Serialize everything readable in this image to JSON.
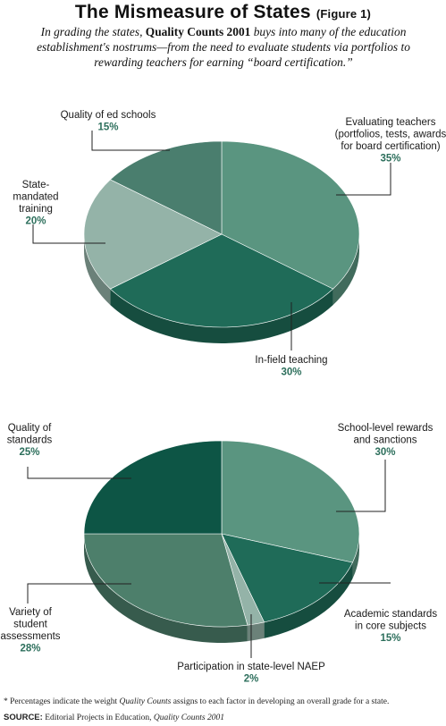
{
  "title": "The Mismeasure of States",
  "figure_label": "(Figure 1)",
  "subtitle": {
    "pre": "In grading the states, ",
    "bold": "Quality Counts 2001",
    "post": " buys into many of the education establishment's nostrums—from the need to evaluate students via portfolios to rewarding teachers for earning “board certification.”"
  },
  "chart_data": [
    {
      "type": "pie",
      "title": "",
      "slices": [
        {
          "label": "Evaluating teachers (portfolios, tests, awards for board certification)",
          "value": 35,
          "pct_label": "35%",
          "color": "#5a9580"
        },
        {
          "label": "In-field teaching",
          "value": 30,
          "pct_label": "30%",
          "color": "#1f6b58"
        },
        {
          "label": "State-mandated training",
          "value": 20,
          "pct_label": "20%",
          "color": "#94b3a8"
        },
        {
          "label": "Quality of ed schools",
          "value": 15,
          "pct_label": "15%",
          "color": "#4a7e6e"
        }
      ]
    },
    {
      "type": "pie",
      "title": "",
      "slices": [
        {
          "label": "School-level rewards and sanctions",
          "value": 30,
          "pct_label": "30%",
          "color": "#5a9580"
        },
        {
          "label": "Academic standards in core subjects",
          "value": 15,
          "pct_label": "15%",
          "color": "#1f6b58"
        },
        {
          "label": "Participation in state-level NAEP",
          "value": 2,
          "pct_label": "2%",
          "color": "#94b3a8"
        },
        {
          "label": "Variety of student assessments",
          "value": 28,
          "pct_label": "28%",
          "color": "#4d7f6b"
        },
        {
          "label": "Quality of standards",
          "value": 25,
          "pct_label": "25%",
          "color": "#0d5545"
        }
      ]
    }
  ],
  "footnote": {
    "pre": "* Percentages indicate the weight ",
    "italic": "Quality Counts",
    "post": " assigns to each factor in developing an overall grade for a state."
  },
  "source": {
    "label": "SOURCE:",
    "pre": " Editorial Projects in Education, ",
    "italic": "Quality Counts 2001"
  }
}
